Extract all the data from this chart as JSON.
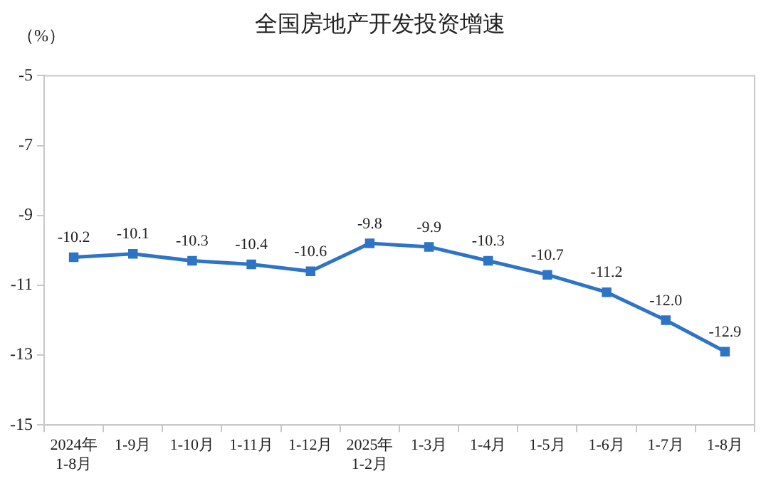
{
  "chart_data": {
    "type": "line",
    "title": "全国房地产开发投资增速",
    "ylabel": "（%）",
    "categories": [
      "2024年\n1-8月",
      "1-9月",
      "1-10月",
      "1-11月",
      "1-12月",
      "2025年\n1-2月",
      "1-3月",
      "1-4月",
      "1-5月",
      "1-6月",
      "1-7月",
      "1-8月"
    ],
    "series": [
      {
        "color": "#2e74c6",
        "values": [
          -10.2,
          -10.1,
          -10.3,
          -10.4,
          -10.6,
          -9.8,
          -9.9,
          -10.3,
          -10.7,
          -11.2,
          -12.0,
          -12.9
        ],
        "value_labels": [
          "-10.2",
          "-10.1",
          "-10.3",
          "-10.4",
          "-10.6",
          "-9.8",
          "-9.9",
          "-10.3",
          "-10.7",
          "-11.2",
          "-12.0",
          "-12.9"
        ]
      }
    ],
    "ylim": [
      -15,
      -5
    ],
    "yticks": [
      -15,
      -13,
      -11,
      -9,
      -7,
      -5
    ],
    "grid": false,
    "legend": false,
    "marker": "square",
    "line_style": "solid"
  }
}
